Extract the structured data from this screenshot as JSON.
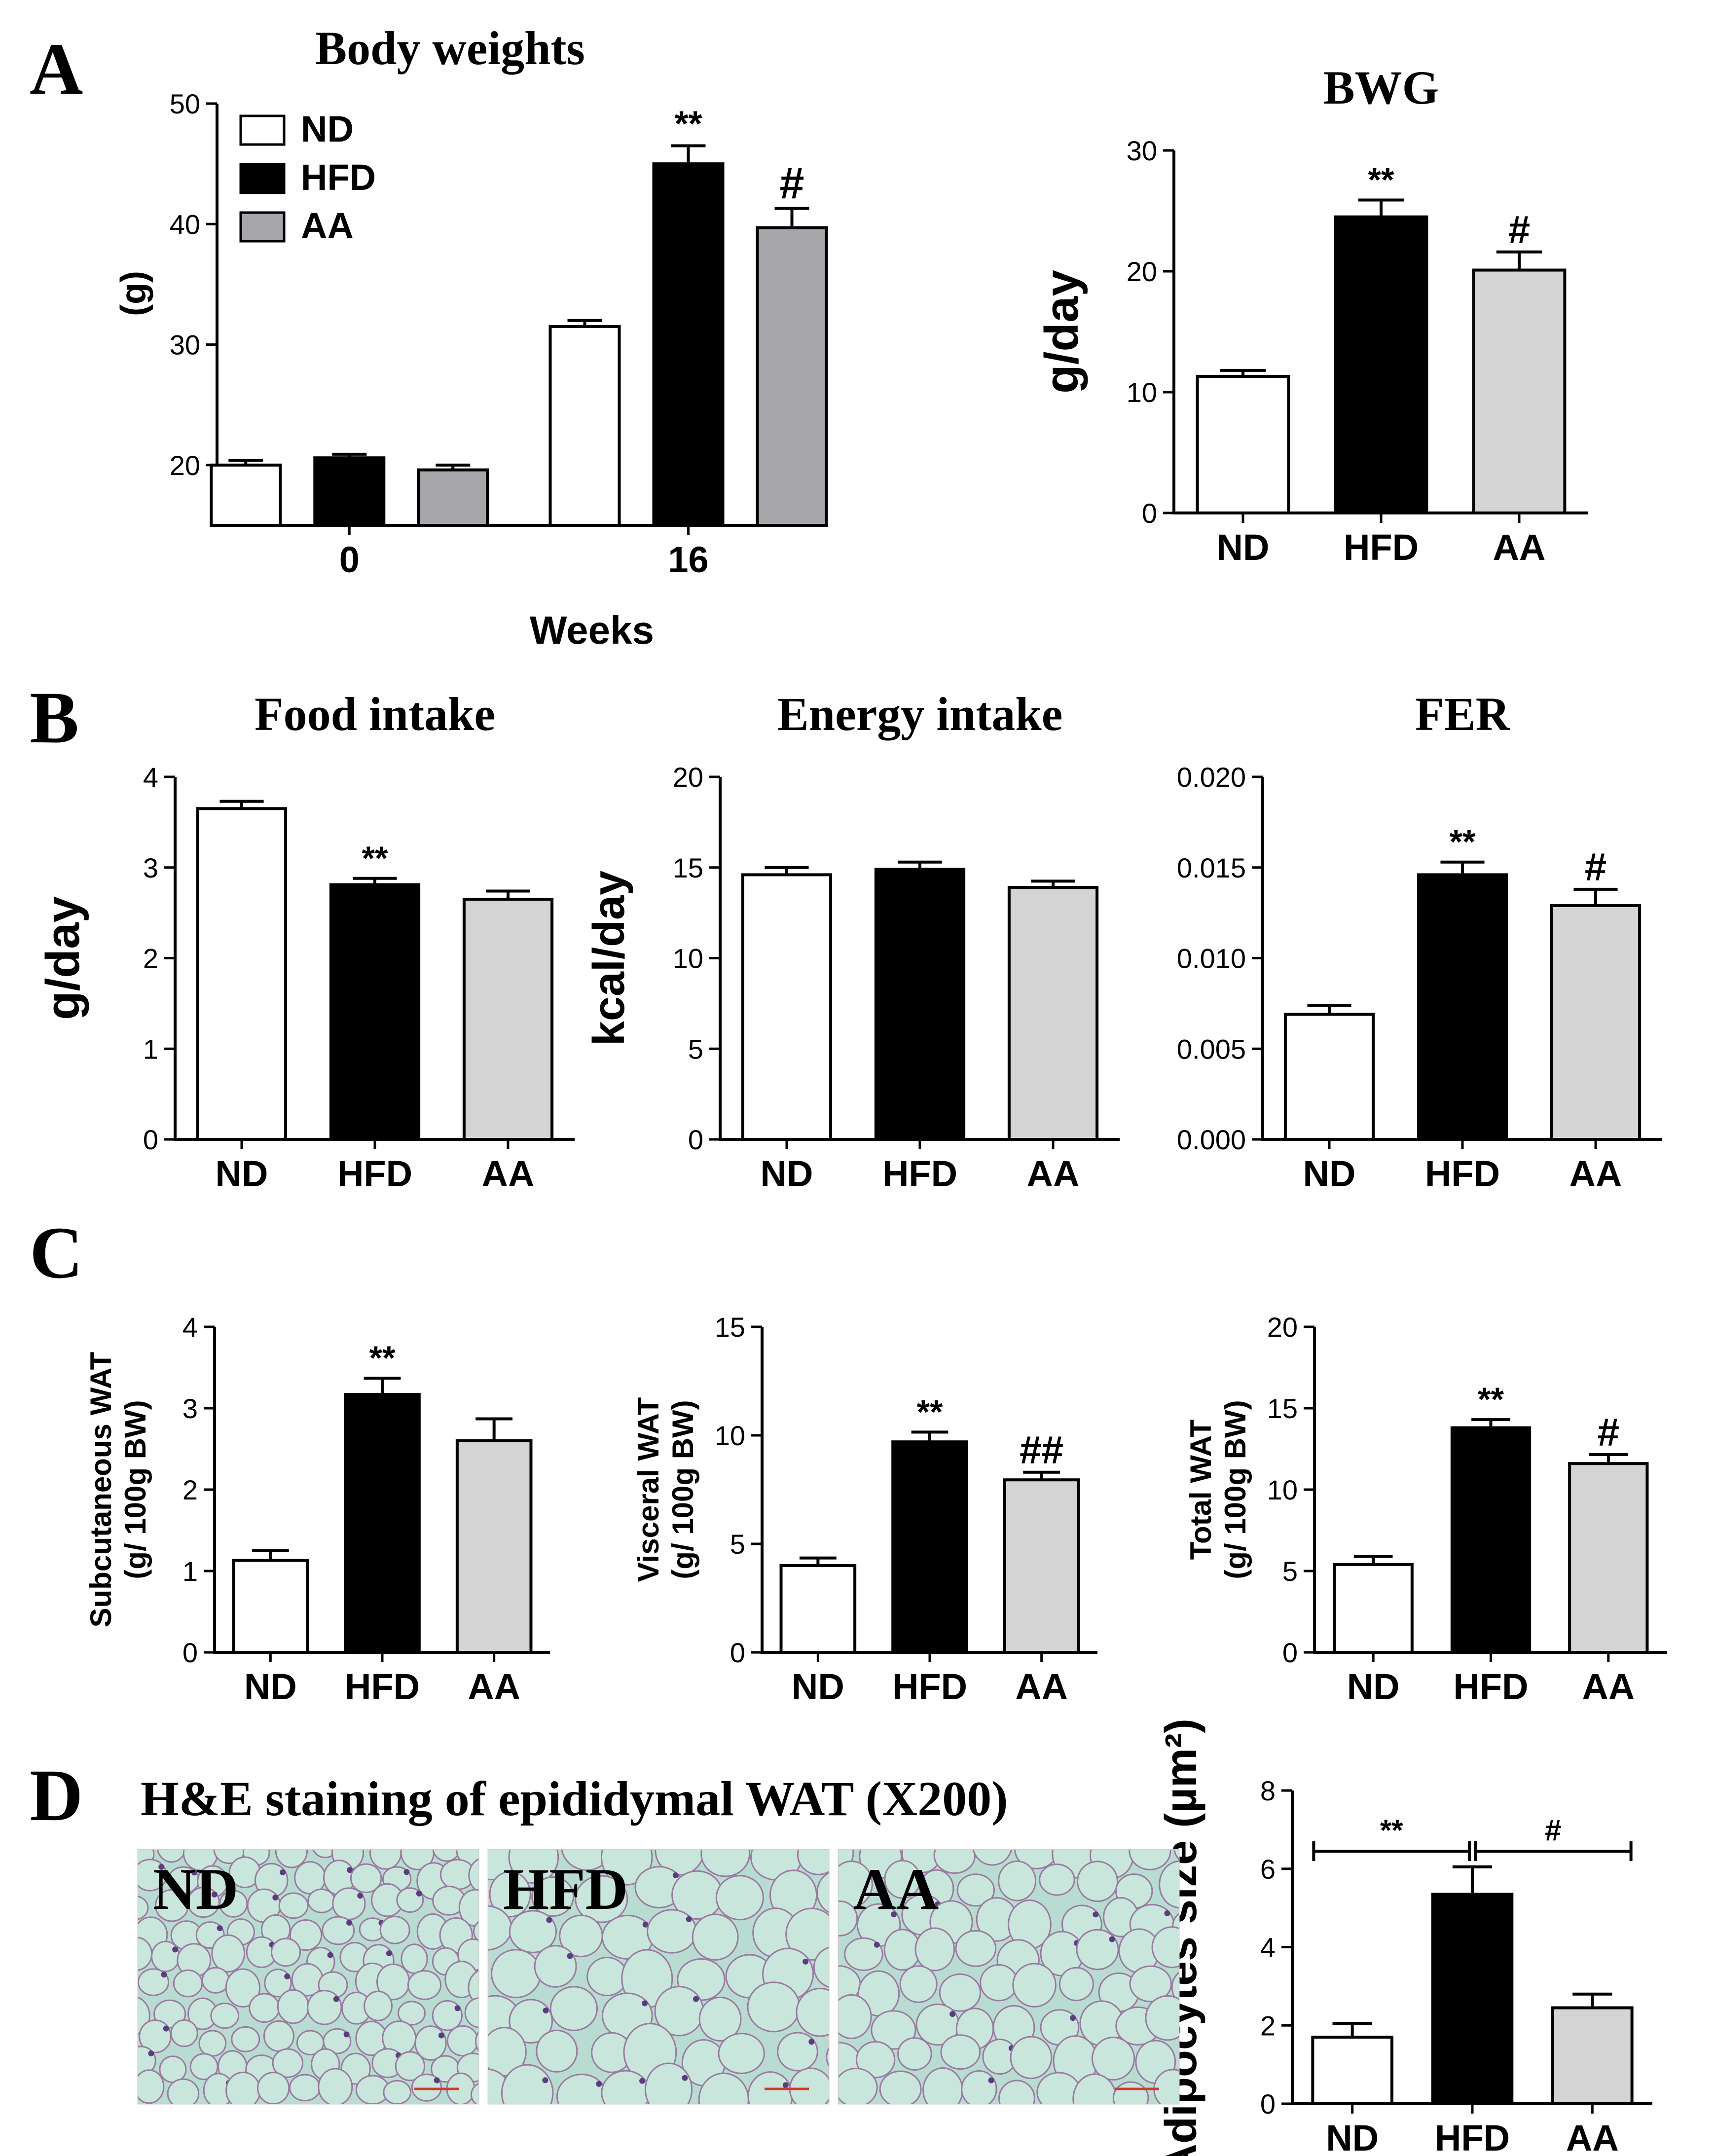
{
  "panels": {
    "A": "A",
    "B": "B",
    "C": "C",
    "D": "D"
  },
  "colors": {
    "ND": "#ffffff",
    "HFD": "#000000",
    "AA_dark": "#a7a7ab",
    "AA_light": "#d4d4d4",
    "tissue": "#b9dcd2",
    "cell_border": "#9a7aa0",
    "nuclei": "#5b3d7f",
    "scale_bar": "#d33a2c"
  },
  "histology": {
    "title": "H&E  staining of epididymal  WAT (X200)",
    "labels": [
      "ND",
      "HFD",
      "AA"
    ]
  },
  "chart_data": [
    {
      "id": "body-weights",
      "type": "bar",
      "title": "Body weights",
      "xlabel": "Weeks",
      "ylabel": "(g)",
      "categories": [
        "0",
        "16"
      ],
      "series": [
        {
          "name": "ND",
          "values": [
            20.0,
            31.5
          ],
          "errors": [
            0.4,
            0.5
          ]
        },
        {
          "name": "HFD",
          "values": [
            20.6,
            45.0
          ],
          "errors": [
            0.3,
            1.5
          ]
        },
        {
          "name": "AA",
          "values": [
            19.6,
            39.7
          ],
          "errors": [
            0.4,
            1.6
          ]
        }
      ],
      "annotations": [
        {
          "category": "16",
          "series": "HFD",
          "text": "**"
        },
        {
          "category": "16",
          "series": "AA",
          "text": "#"
        }
      ],
      "ylim": [
        15,
        50
      ],
      "yticks": [
        20,
        30,
        40,
        50
      ],
      "legend": [
        "ND",
        "HFD",
        "AA"
      ]
    },
    {
      "id": "bwg",
      "type": "bar",
      "title": "BWG",
      "xlabel": "",
      "ylabel": "g/day",
      "categories": [
        "ND",
        "HFD",
        "AA"
      ],
      "values": [
        11.3,
        24.5,
        20.1
      ],
      "errors": [
        0.5,
        1.4,
        1.5
      ],
      "annotations": [
        "",
        "**",
        "#"
      ],
      "ylim": [
        0,
        30
      ],
      "yticks": [
        0,
        10,
        20,
        30
      ]
    },
    {
      "id": "food-intake",
      "type": "bar",
      "title": "Food intake",
      "xlabel": "",
      "ylabel": "g/day",
      "categories": [
        "ND",
        "HFD",
        "AA"
      ],
      "values": [
        3.65,
        2.81,
        2.65
      ],
      "errors": [
        0.08,
        0.07,
        0.09
      ],
      "annotations": [
        "",
        "**",
        ""
      ],
      "ylim": [
        0,
        4
      ],
      "yticks": [
        0,
        1,
        2,
        3,
        4
      ]
    },
    {
      "id": "energy-intake",
      "type": "bar",
      "title": "Energy intake",
      "xlabel": "",
      "ylabel": "kcal/day",
      "categories": [
        "ND",
        "HFD",
        "AA"
      ],
      "values": [
        14.6,
        14.9,
        13.9
      ],
      "errors": [
        0.4,
        0.4,
        0.35
      ],
      "annotations": [
        "",
        "",
        ""
      ],
      "ylim": [
        0,
        20
      ],
      "yticks": [
        0,
        5,
        10,
        15,
        20
      ]
    },
    {
      "id": "fer",
      "type": "bar",
      "title": "FER",
      "xlabel": "",
      "ylabel": "",
      "categories": [
        "ND",
        "HFD",
        "AA"
      ],
      "values": [
        0.0069,
        0.0146,
        0.0129
      ],
      "errors": [
        0.0005,
        0.0007,
        0.0009
      ],
      "annotations": [
        "",
        "**",
        "#"
      ],
      "ylim": [
        0,
        0.02
      ],
      "yticks": [
        0,
        0.005,
        0.01,
        0.015,
        0.02
      ],
      "ytick_labels": [
        "0.000",
        "0.005",
        "0.010",
        "0.015",
        "0.020"
      ]
    },
    {
      "id": "subcutaneous-wat",
      "type": "bar",
      "title": "",
      "xlabel": "",
      "ylabel": "Subcutaneous WAT",
      "ylabel2": "(g/ 100g BW)",
      "categories": [
        "ND",
        "HFD",
        "AA"
      ],
      "values": [
        1.13,
        3.17,
        2.6
      ],
      "errors": [
        0.12,
        0.2,
        0.27
      ],
      "annotations": [
        "",
        "**",
        ""
      ],
      "ylim": [
        0,
        4
      ],
      "yticks": [
        0,
        1,
        2,
        3,
        4
      ]
    },
    {
      "id": "visceral-wat",
      "type": "bar",
      "title": "",
      "xlabel": "",
      "ylabel": "Visceral WAT",
      "ylabel2": "(g/ 100g BW)",
      "categories": [
        "ND",
        "HFD",
        "AA"
      ],
      "values": [
        4.0,
        9.7,
        7.95
      ],
      "errors": [
        0.35,
        0.45,
        0.35
      ],
      "annotations": [
        "",
        "**",
        "##"
      ],
      "ylim": [
        0,
        15
      ],
      "yticks": [
        0,
        5,
        10,
        15
      ]
    },
    {
      "id": "total-wat",
      "type": "bar",
      "title": "",
      "xlabel": "",
      "ylabel": "Total WAT",
      "ylabel2": "(g/ 100g BW)",
      "categories": [
        "ND",
        "HFD",
        "AA"
      ],
      "values": [
        5.4,
        13.8,
        11.6
      ],
      "errors": [
        0.5,
        0.5,
        0.55
      ],
      "annotations": [
        "",
        "**",
        "#"
      ],
      "ylim": [
        0,
        20
      ],
      "yticks": [
        0,
        5,
        10,
        15,
        20
      ]
    },
    {
      "id": "adipocyte-size",
      "type": "bar",
      "title": "",
      "xlabel": "",
      "ylabel": "Adipocytes size (µm²)",
      "categories": [
        "ND",
        "HFD",
        "AA"
      ],
      "values": [
        1.7,
        5.35,
        2.45
      ],
      "errors": [
        0.35,
        0.7,
        0.35
      ],
      "annotations": [],
      "brackets": [
        {
          "from": "ND",
          "to": "HFD",
          "text": "**"
        },
        {
          "from": "HFD",
          "to": "AA",
          "text": "#"
        }
      ],
      "ylim": [
        0,
        8
      ],
      "yticks": [
        0,
        2,
        4,
        6,
        8
      ]
    }
  ]
}
